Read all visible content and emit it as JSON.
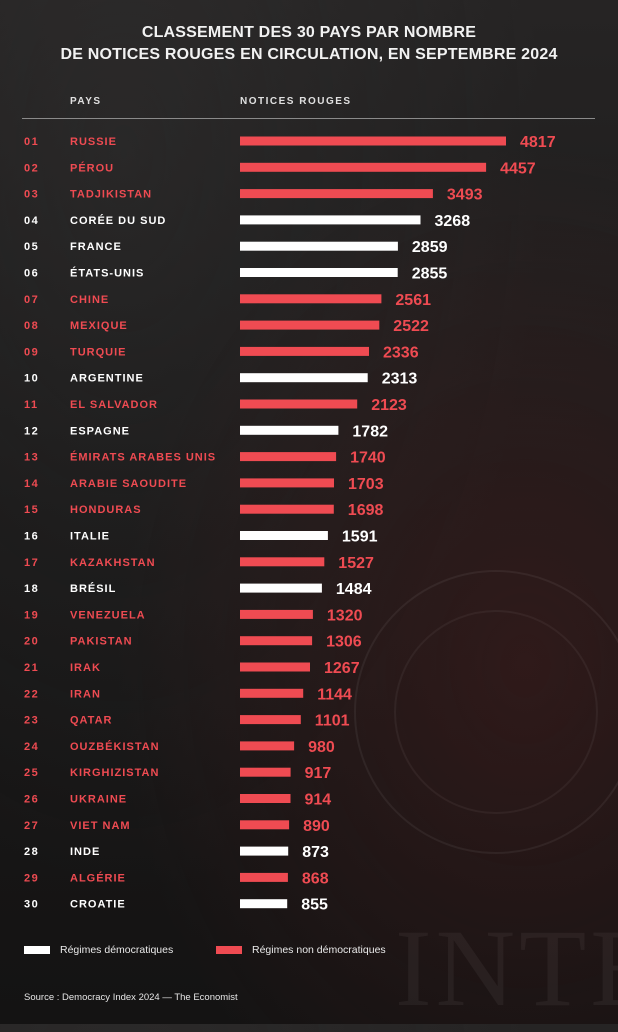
{
  "title_line1": "CLASSEMENT DES 30 PAYS PAR NOMBRE",
  "title_line2": "DE NOTICES ROUGES EN CIRCULATION, EN SEPTEMBRE 2024",
  "col_country": "PAYS",
  "col_notices": "NOTICES ROUGES",
  "colors": {
    "red": "#ef4b52",
    "white": "#ffffff"
  },
  "legend": {
    "democratic": "Régimes démocratiques",
    "non_democratic": "Régimes non démocratiques"
  },
  "source": "Source :  Democracy Index 2024 — The Economist",
  "watermark_text": "INTER",
  "chart_data": {
    "type": "bar",
    "orientation": "horizontal",
    "xlim": [
      0,
      4817
    ],
    "rows": [
      {
        "rank": "01",
        "country": "RUSSIE",
        "value": 4817,
        "value_label": "4817",
        "regime": "non"
      },
      {
        "rank": "02",
        "country": "PÉROU",
        "value": 4457,
        "value_label": "4457",
        "regime": "non"
      },
      {
        "rank": "03",
        "country": "TADJIKISTAN",
        "value": 3493,
        "value_label": "3493",
        "regime": "non"
      },
      {
        "rank": "04",
        "country": "CORÉE DU SUD",
        "value": 3268,
        "value_label": "3268",
        "regime": "demo"
      },
      {
        "rank": "05",
        "country": "FRANCE",
        "value": 2859,
        "value_label": "2859",
        "regime": "demo"
      },
      {
        "rank": "06",
        "country": "ÉTATS-UNIS",
        "value": 2855,
        "value_label": "2855",
        "regime": "demo"
      },
      {
        "rank": "07",
        "country": "CHINE",
        "value": 2561,
        "value_label": "2561",
        "regime": "non"
      },
      {
        "rank": "08",
        "country": "MEXIQUE",
        "value": 2522,
        "value_label": "2522",
        "regime": "non"
      },
      {
        "rank": "09",
        "country": "TURQUIE",
        "value": 2336,
        "value_label": "2336",
        "regime": "non"
      },
      {
        "rank": "10",
        "country": "ARGENTINE",
        "value": 2313,
        "value_label": "2313",
        "regime": "demo"
      },
      {
        "rank": "11",
        "country": "EL SALVADOR",
        "value": 2123,
        "value_label": "2123",
        "regime": "non"
      },
      {
        "rank": "12",
        "country": "ESPAGNE",
        "value": 1782,
        "value_label": "1782",
        "regime": "demo"
      },
      {
        "rank": "13",
        "country": "ÉMIRATS ARABES UNIS",
        "value": 1740,
        "value_label": "1740",
        "regime": "non"
      },
      {
        "rank": "14",
        "country": "ARABIE SAOUDITE",
        "value": 1703,
        "value_label": "1703",
        "regime": "non"
      },
      {
        "rank": "15",
        "country": "HONDURAS",
        "value": 1698,
        "value_label": "1698",
        "regime": "non"
      },
      {
        "rank": "16",
        "country": "ITALIE",
        "value": 1591,
        "value_label": "1591",
        "regime": "demo"
      },
      {
        "rank": "17",
        "country": "KAZAKHSTAN",
        "value": 1527,
        "value_label": "1527",
        "regime": "non"
      },
      {
        "rank": "18",
        "country": "BRÉSIL",
        "value": 1484,
        "value_label": "1484",
        "regime": "demo"
      },
      {
        "rank": "19",
        "country": "VENEZUELA",
        "value": 1320,
        "value_label": "1320",
        "regime": "non"
      },
      {
        "rank": "20",
        "country": "PAKISTAN",
        "value": 1306,
        "value_label": "1306",
        "regime": "non"
      },
      {
        "rank": "21",
        "country": "IRAK",
        "value": 1267,
        "value_label": "1267",
        "regime": "non"
      },
      {
        "rank": "22",
        "country": "IRAN",
        "value": 1144,
        "value_label": "1144",
        "regime": "non"
      },
      {
        "rank": "23",
        "country": "QATAR",
        "value": 1101,
        "value_label": "1101",
        "regime": "non"
      },
      {
        "rank": "24",
        "country": "OUZBÉKISTAN",
        "value": 980,
        "value_label": "980",
        "regime": "non"
      },
      {
        "rank": "25",
        "country": "KIRGHIZISTAN",
        "value": 917,
        "value_label": "917",
        "regime": "non"
      },
      {
        "rank": "26",
        "country": "UKRAINE",
        "value": 914,
        "value_label": "914",
        "regime": "non"
      },
      {
        "rank": "27",
        "country": "VIET NAM",
        "value": 890,
        "value_label": "890",
        "regime": "non"
      },
      {
        "rank": "28",
        "country": "INDE",
        "value": 873,
        "value_label": "873",
        "regime": "demo"
      },
      {
        "rank": "29",
        "country": "ALGÉRIE",
        "value": 868,
        "value_label": "868",
        "regime": "non"
      },
      {
        "rank": "30",
        "country": "CROATIE",
        "value": 855,
        "value_label": "855",
        "regime": "demo"
      }
    ]
  }
}
